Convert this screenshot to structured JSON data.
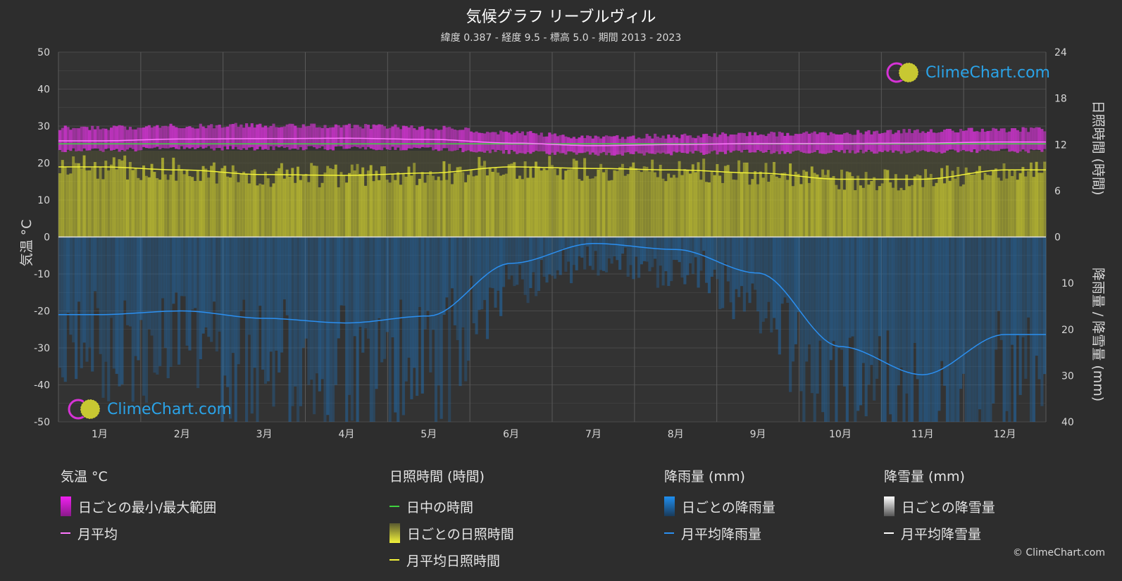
{
  "header": {
    "title": "気候グラフ リーブルヴィル",
    "subtitle": "緯度 0.387 - 経度 9.5 - 標高 5.0 - 期間 2013 - 2023"
  },
  "logo_text": "ClimeChart.com",
  "copyright": "© ClimeChart.com",
  "colors": {
    "background": "#2d2d2d",
    "temperature_range": "#d633d6",
    "temperature_avg": "#ff77ff",
    "daylight": "#3fd13f",
    "sunshine": "#c8c832",
    "sunshine_avg": "#f2f23a",
    "rain": "#1f6fb5",
    "rain_avg": "#2b8ff0",
    "snow_avg": "#ffffff"
  },
  "legend": {
    "temperature": {
      "header": "気温 °C",
      "range": "日ごとの最小/最大範囲",
      "avg": "月平均"
    },
    "sunshine": {
      "header": "日照時間 (時間)",
      "daylight": "日中の時間",
      "daily": "日ごとの日照時間",
      "avg": "月平均日照時間"
    },
    "rain": {
      "header": "降雨量 (mm)",
      "daily": "日ごとの降雨量",
      "avg": "月平均降雨量"
    },
    "snow": {
      "header": "降雪量 (mm)",
      "daily": "日ごとの降雪量",
      "avg": "月平均降雪量"
    }
  },
  "chart_data": {
    "type": "line",
    "categories": [
      "1月",
      "2月",
      "3月",
      "4月",
      "5月",
      "6月",
      "7月",
      "8月",
      "9月",
      "10月",
      "11月",
      "12月"
    ],
    "axes": {
      "left": {
        "label": "気温 °C",
        "range": [
          -50,
          50
        ],
        "ticks": [
          50,
          40,
          30,
          20,
          10,
          0,
          -10,
          -20,
          -30,
          -40,
          -50
        ]
      },
      "right_top": {
        "label": "日照時間 (時間)",
        "range": [
          0,
          24
        ],
        "ticks": [
          24,
          18,
          12,
          6,
          0
        ]
      },
      "right_bottom": {
        "label": "降雨量 / 降雪量 (mm)",
        "range": [
          0,
          40
        ],
        "ticks": [
          10,
          20,
          30,
          40
        ]
      }
    },
    "grid": true,
    "series": [
      {
        "name": "月平均",
        "axis": "temperature",
        "values": [
          26.0,
          26.5,
          26.6,
          26.7,
          26.4,
          25.4,
          24.7,
          25.0,
          25.3,
          25.3,
          25.4,
          25.7
        ]
      },
      {
        "name": "日ごとの最小/最大範囲",
        "axis": "temperature",
        "min": [
          23.5,
          24.0,
          24.0,
          24.0,
          23.8,
          23.0,
          22.5,
          22.7,
          23.0,
          23.0,
          23.0,
          23.3
        ],
        "max": [
          29.5,
          30.0,
          30.2,
          30.0,
          29.6,
          28.2,
          27.0,
          27.3,
          27.8,
          28.2,
          28.6,
          29.0
        ]
      },
      {
        "name": "日中の時間",
        "axis": "sunshine",
        "values": [
          12.1,
          12.1,
          12.1,
          12.1,
          12.1,
          12.1,
          12.1,
          12.1,
          12.1,
          12.1,
          12.1,
          12.1
        ]
      },
      {
        "name": "月平均日照時間",
        "axis": "sunshine",
        "values": [
          9.1,
          8.7,
          8.1,
          8.0,
          8.3,
          9.1,
          8.9,
          8.7,
          8.3,
          7.5,
          7.5,
          8.7
        ]
      },
      {
        "name": "月平均降雨量",
        "axis": "rain",
        "values": [
          16.8,
          16.0,
          17.6,
          18.6,
          17.1,
          5.7,
          1.4,
          2.7,
          7.8,
          23.7,
          29.8,
          21.1
        ]
      },
      {
        "name": "月平均降雪量",
        "axis": "rain",
        "values": [
          0,
          0,
          0,
          0,
          0,
          0,
          0,
          0,
          0,
          0,
          0,
          0
        ]
      }
    ]
  }
}
